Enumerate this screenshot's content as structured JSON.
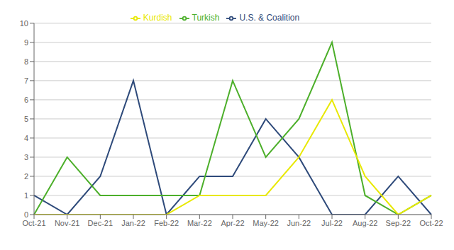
{
  "chart_data": {
    "type": "line",
    "categories": [
      "Oct-21",
      "Nov-21",
      "Dec-21",
      "Jan-22",
      "Feb-22",
      "Mar-22",
      "Apr-22",
      "May-22",
      "Jun-22",
      "Jul-22",
      "Aug-22",
      "Sep-22",
      "Oct-22"
    ],
    "series": [
      {
        "name": "U.S. & Coalition",
        "color": "#2e4a7a",
        "values": [
          1,
          0,
          2,
          7,
          0,
          2,
          2,
          5,
          3,
          0,
          0,
          2,
          0
        ]
      },
      {
        "name": "Turkish",
        "color": "#4caf2a",
        "values": [
          0,
          3,
          1,
          1,
          1,
          1,
          7,
          3,
          5,
          9,
          1,
          0,
          1
        ]
      },
      {
        "name": "Kurdish",
        "color": "#e8e800",
        "values": [
          0,
          0,
          0,
          0,
          0,
          1,
          1,
          1,
          3,
          6,
          2,
          0,
          1
        ]
      }
    ],
    "ylim": [
      0,
      10
    ],
    "yticks": [
      0,
      1,
      2,
      3,
      4,
      5,
      6,
      7,
      8,
      9,
      10
    ],
    "grid": true,
    "legend": "top"
  }
}
